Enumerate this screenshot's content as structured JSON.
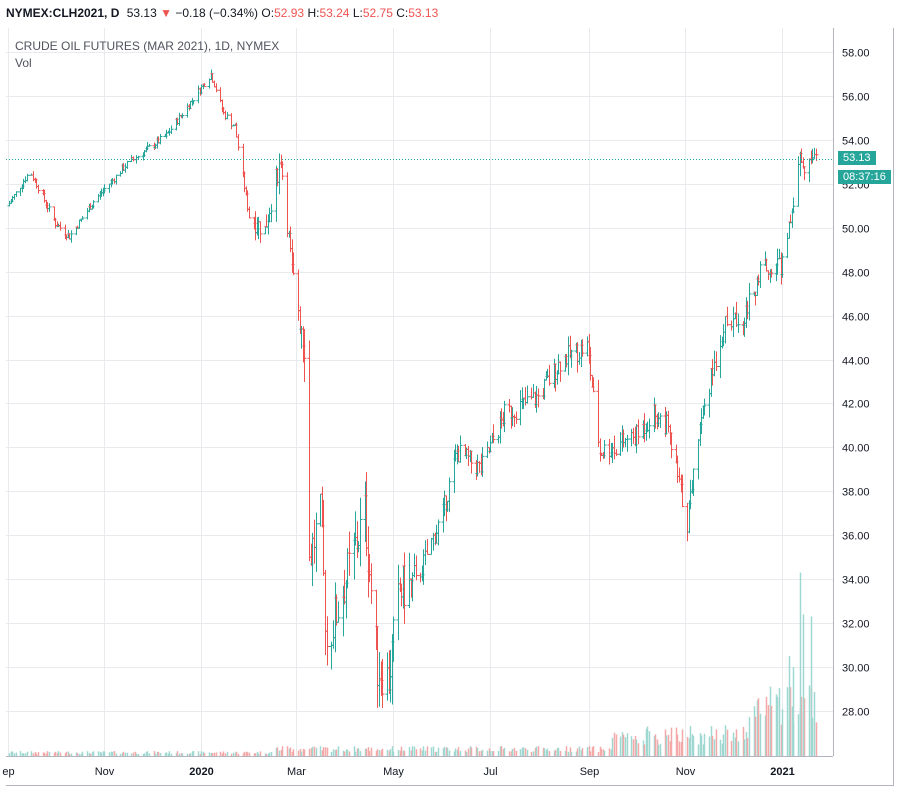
{
  "header": {
    "symbol": "NYMEX:CLH2021, D",
    "last": "53.13",
    "arrow": "▼",
    "change": "−0.18 (−0.34%)",
    "o_label": "O:",
    "o_value": "52.93",
    "h_label": "H:",
    "h_value": "53.24",
    "l_label": "L:",
    "l_value": "52.75",
    "c_label": "C:",
    "c_value": "53.13"
  },
  "legend": {
    "title": "CRUDE OIL FUTURES (MAR 2021), 1D, NYMEX",
    "vol_label": "Vol"
  },
  "price_tag": {
    "price": "53.13",
    "countdown": "08:37:16"
  },
  "colors": {
    "up": "#26a69a",
    "down": "#ef5350",
    "grid": "#e8eaee",
    "axis": "#b2b5be"
  },
  "chart_data": {
    "type": "ohlc",
    "ylim": [
      26.0,
      59.0
    ],
    "y_ticks": [
      28,
      30,
      32,
      34,
      36,
      38,
      40,
      42,
      44,
      46,
      48,
      50,
      52,
      54,
      56,
      58
    ],
    "x_ticks": [
      {
        "label": "ep",
        "date": "2019-09-01",
        "bold": false
      },
      {
        "label": "Nov",
        "date": "2019-11-01",
        "bold": false
      },
      {
        "label": "2020",
        "date": "2020-01-01",
        "bold": true
      },
      {
        "label": "Mar",
        "date": "2020-03-01",
        "bold": false
      },
      {
        "label": "May",
        "date": "2020-05-01",
        "bold": false
      },
      {
        "label": "Jul",
        "date": "2020-07-01",
        "bold": false
      },
      {
        "label": "Sep",
        "date": "2020-09-01",
        "bold": false
      },
      {
        "label": "Nov",
        "date": "2020-11-01",
        "bold": false
      },
      {
        "label": "2021",
        "date": "2021-01-01",
        "bold": true
      }
    ],
    "last_price": 53.13,
    "anchors": [
      [
        "2019-09-01",
        51.0
      ],
      [
        "2019-09-15",
        52.6
      ],
      [
        "2019-10-01",
        50.2
      ],
      [
        "2019-10-10",
        49.6
      ],
      [
        "2019-10-25",
        51.2
      ],
      [
        "2019-11-15",
        52.9
      ],
      [
        "2019-12-10",
        54.2
      ],
      [
        "2019-12-31",
        56.3
      ],
      [
        "2020-01-07",
        57.0
      ],
      [
        "2020-01-15",
        55.2
      ],
      [
        "2020-01-22",
        54.6
      ],
      [
        "2020-01-31",
        50.5
      ],
      [
        "2020-02-10",
        49.9
      ],
      [
        "2020-02-20",
        53.2
      ],
      [
        "2020-02-27",
        48.0
      ],
      [
        "2020-03-06",
        45.0
      ],
      [
        "2020-03-09",
        35.0
      ],
      [
        "2020-03-16",
        36.8
      ],
      [
        "2020-03-20",
        31.0
      ],
      [
        "2020-04-01",
        34.0
      ],
      [
        "2020-04-13",
        37.0
      ],
      [
        "2020-04-21",
        30.0
      ],
      [
        "2020-04-28",
        29.5
      ],
      [
        "2020-05-05",
        33.5
      ],
      [
        "2020-05-15",
        33.8
      ],
      [
        "2020-06-01",
        37.0
      ],
      [
        "2020-06-10",
        39.8
      ],
      [
        "2020-06-25",
        39.0
      ],
      [
        "2020-07-10",
        41.5
      ],
      [
        "2020-07-31",
        42.3
      ],
      [
        "2020-08-15",
        44.0
      ],
      [
        "2020-08-31",
        44.6
      ],
      [
        "2020-09-08",
        39.8
      ],
      [
        "2020-09-15",
        40.0
      ],
      [
        "2020-10-01",
        40.5
      ],
      [
        "2020-10-12",
        41.6
      ],
      [
        "2020-10-20",
        41.0
      ],
      [
        "2020-11-02",
        36.6
      ],
      [
        "2020-11-10",
        41.2
      ],
      [
        "2020-11-25",
        45.5
      ],
      [
        "2020-12-08",
        46.0
      ],
      [
        "2020-12-20",
        48.2
      ],
      [
        "2020-12-31",
        48.3
      ],
      [
        "2021-01-06",
        50.5
      ],
      [
        "2021-01-12",
        52.9
      ],
      [
        "2021-01-18",
        52.8
      ],
      [
        "2021-01-22",
        53.13
      ]
    ],
    "volume_peaks": [
      [
        "2021-01-05",
        30.5
      ],
      [
        "2021-01-08",
        30.0
      ],
      [
        "2021-01-12",
        34.3
      ],
      [
        "2021-01-14",
        32.4
      ],
      [
        "2021-01-19",
        32.3
      ]
    ]
  }
}
